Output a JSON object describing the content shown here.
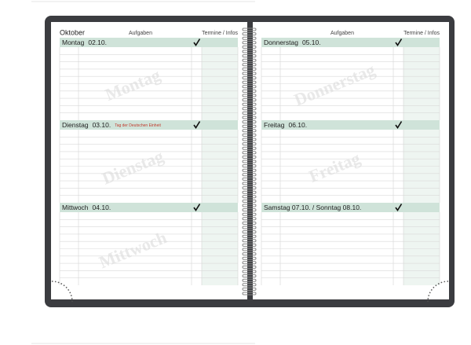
{
  "left_page": {
    "month": "Oktober",
    "tasks_header": "Aufgaben",
    "info_header": "Termine / Infos",
    "days": [
      {
        "name": "Montag",
        "date": "02.10."
      },
      {
        "name": "Dienstag",
        "date": "03.10.",
        "holiday": "Tag der Deutschen Einheit"
      },
      {
        "name": "Mittwoch",
        "date": "04.10."
      }
    ]
  },
  "right_page": {
    "tasks_header": "Aufgaben",
    "info_header": "Termine / Infos",
    "days": [
      {
        "name": "Donnerstag",
        "date": "05.10."
      },
      {
        "name": "Freitag",
        "date": "06.10."
      },
      {
        "name": "Samstag 07.10. / Sonntag 08.10."
      }
    ]
  }
}
